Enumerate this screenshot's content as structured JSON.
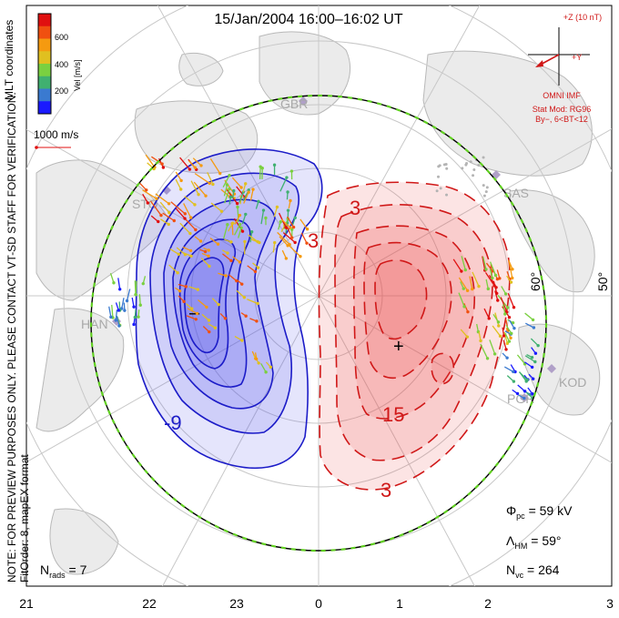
{
  "title": "15/Jan/2004  16:00–16:02  UT",
  "side_note": "NOTE: FOR PREVIEW PURPOSES ONLY. PLEASE CONTACT VT-SD STAFF FOR VERIFICATION.",
  "fit_order": "FitOrder: 8,  mapEX format",
  "coord_label": "MLT coordinates",
  "colorbar": {
    "label": "Vel [m/s]",
    "ticks": [
      "200",
      "400",
      "600"
    ],
    "colors": [
      "#1a1aff",
      "#3a7ad0",
      "#40b070",
      "#7ad040",
      "#e0c020",
      "#f59a10",
      "#f05010",
      "#e01010"
    ]
  },
  "scale_vector": "1000 m/s",
  "imf": {
    "scale": "+Z (10 nT)",
    "y_label": "+Y",
    "source": "OMNI IMF",
    "model": "Stat Mod: RG96",
    "condition": "By−, 6<BT<12"
  },
  "stations": [
    "GBR",
    "STO",
    "HAN",
    "SAS",
    "KOD",
    "PGR"
  ],
  "lat_labels": [
    "60°",
    "50°"
  ],
  "mlt_labels": [
    "21",
    "22",
    "23",
    "0",
    "1",
    "2",
    "3"
  ],
  "contour_labels": [
    "-9",
    "3",
    "15",
    "3",
    "3"
  ],
  "min_marker": "–",
  "max_marker": "+",
  "stats": {
    "phi_pc_label": "Φ",
    "phi_pc_sub": "pc",
    "phi_pc_value": " = 59 kV",
    "lambda_label": "Λ",
    "lambda_sub": "HM",
    "lambda_value": " = 59°",
    "nvc_label": "N",
    "nvc_sub": "vc",
    "nvc_value": " = 264",
    "nrads_label": "N",
    "nrads_sub": "rads",
    "nrads_value": " = 7"
  },
  "colors": {
    "negative_fill": "#5050e8",
    "negative_line": "#1c1cc8",
    "positive_fill": "#ee4a4a",
    "positive_line": "#d01818",
    "boundary": "#60d020",
    "imf_red": "#d01818"
  }
}
